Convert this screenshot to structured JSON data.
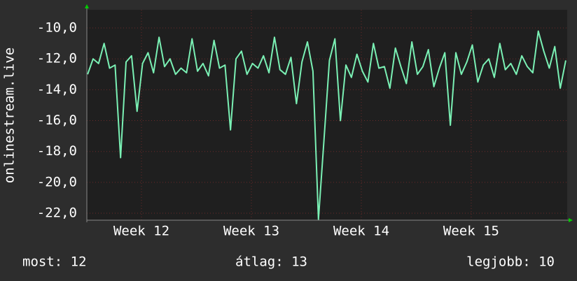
{
  "chart_data": {
    "type": "line",
    "y_label": "onlinestream.live",
    "x": [
      11.51,
      11.56,
      11.61,
      11.66,
      11.71,
      11.76,
      11.81,
      11.86,
      11.91,
      11.96,
      12.01,
      12.06,
      12.11,
      12.16,
      12.21,
      12.26,
      12.31,
      12.36,
      12.41,
      12.46,
      12.51,
      12.56,
      12.61,
      12.66,
      12.71,
      12.76,
      12.81,
      12.86,
      12.91,
      12.96,
      13.01,
      13.06,
      13.11,
      13.16,
      13.21,
      13.26,
      13.31,
      13.36,
      13.41,
      13.46,
      13.51,
      13.56,
      13.61,
      13.66,
      13.71,
      13.76,
      13.81,
      13.86,
      13.91,
      13.96,
      14.01,
      14.06,
      14.11,
      14.16,
      14.21,
      14.26,
      14.31,
      14.36,
      14.41,
      14.46,
      14.51,
      14.56,
      14.61,
      14.66,
      14.71,
      14.76,
      14.81,
      14.86,
      14.91,
      14.96,
      15.01,
      15.06,
      15.11,
      15.16,
      15.21,
      15.26,
      15.31,
      15.36,
      15.41,
      15.46,
      15.51,
      15.56,
      15.61,
      15.66,
      15.71,
      15.76,
      15.81,
      15.86
    ],
    "series": [
      {
        "color": "#7af0b4",
        "values": [
          -13.0,
          -12.0,
          -12.3,
          -11.0,
          -12.6,
          -12.4,
          -18.4,
          -12.2,
          -11.8,
          -15.4,
          -12.3,
          -11.6,
          -12.9,
          -10.6,
          -12.5,
          -12.0,
          -13.0,
          -12.6,
          -12.9,
          -10.7,
          -12.8,
          -12.3,
          -13.1,
          -10.8,
          -12.6,
          -12.4,
          -16.6,
          -12.0,
          -11.5,
          -13.0,
          -12.3,
          -12.6,
          -11.8,
          -12.9,
          -10.6,
          -12.7,
          -13.0,
          -11.9,
          -14.9,
          -12.2,
          -10.9,
          -12.8,
          -22.4,
          -17.3,
          -12.1,
          -10.7,
          -16.0,
          -12.4,
          -13.2,
          -11.7,
          -12.8,
          -13.5,
          -11.0,
          -12.6,
          -12.5,
          -13.9,
          -11.3,
          -12.5,
          -13.6,
          -10.9,
          -13.0,
          -12.5,
          -11.4,
          -13.8,
          -12.6,
          -11.6,
          -16.3,
          -11.6,
          -13.0,
          -12.2,
          -11.1,
          -13.5,
          -12.4,
          -12.0,
          -13.2,
          -11.0,
          -12.7,
          -12.3,
          -13.0,
          -11.8,
          -12.5,
          -12.9,
          -10.2,
          -11.5,
          -12.6,
          -11.2,
          -13.9,
          -12.1
        ]
      }
    ],
    "xlim": [
      11.503,
      15.873
    ],
    "xticks": [
      {
        "value": 12,
        "label": "Week 12"
      },
      {
        "value": 13,
        "label": "Week 13"
      },
      {
        "value": 14,
        "label": "Week 14"
      },
      {
        "value": 15,
        "label": "Week 15"
      }
    ],
    "ylim": [
      -22.45,
      -8.82
    ],
    "yticks": [
      {
        "value": -10,
        "label": "-10,0"
      },
      {
        "value": -12,
        "label": "-12,0"
      },
      {
        "value": -14,
        "label": "-14,0"
      },
      {
        "value": -16,
        "label": "-16,0"
      },
      {
        "value": -18,
        "label": "-18,0"
      },
      {
        "value": -20,
        "label": "-20,0"
      },
      {
        "value": -22,
        "label": "-22,0"
      }
    ],
    "grid": true,
    "summary": [
      "most: 12",
      "átlag: 13",
      "legjobb: 10"
    ]
  }
}
